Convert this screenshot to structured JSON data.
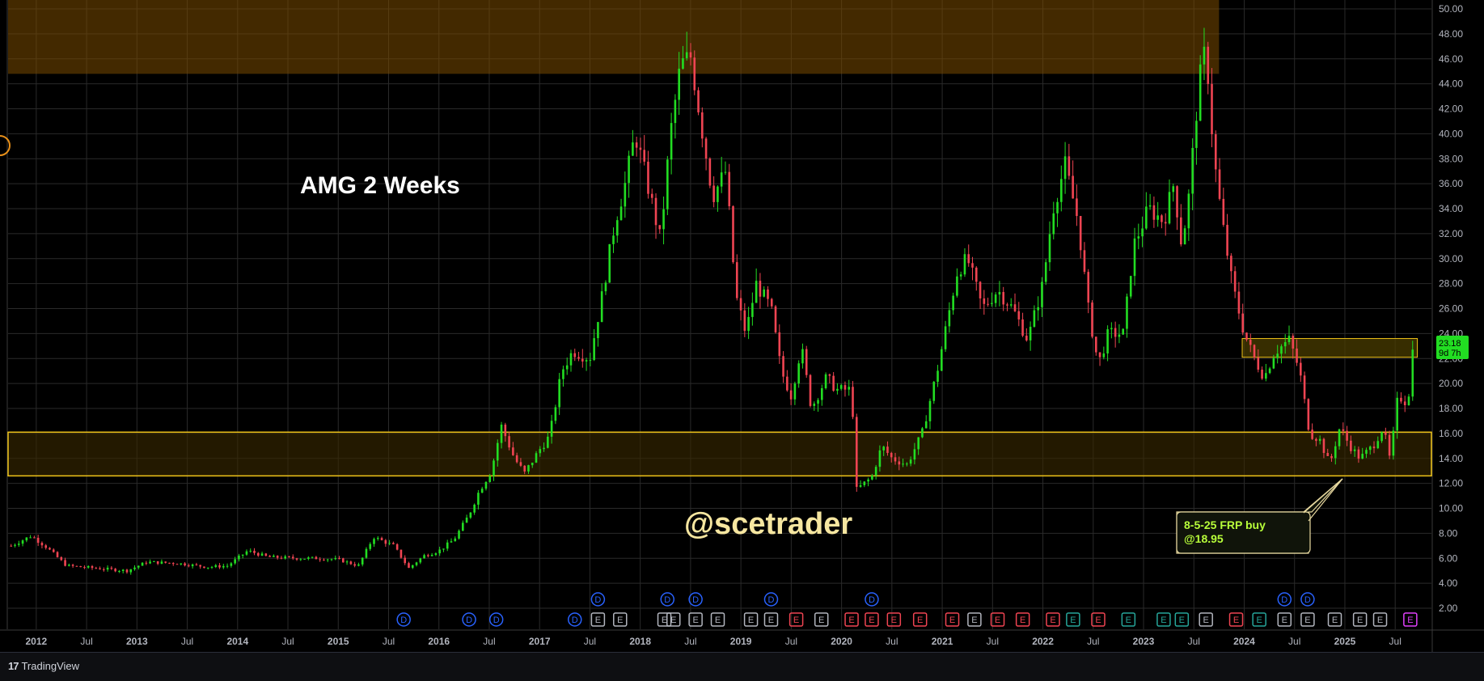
{
  "chart_data": {
    "type": "candlestick",
    "title": "AMG 2 Weeks",
    "watermark": "@scetrader",
    "y_axis": {
      "ticks": [
        "50.00",
        "48.00",
        "46.00",
        "44.00",
        "42.00",
        "40.00",
        "38.00",
        "36.00",
        "34.00",
        "32.00",
        "30.00",
        "28.00",
        "26.00",
        "24.00",
        "22.00",
        "20.00",
        "18.00",
        "16.00",
        "14.00",
        "12.00",
        "10.00",
        "8.00",
        "6.00",
        "4.00",
        "2.00"
      ],
      "ylim": [
        0,
        51
      ]
    },
    "x_axis": {
      "ticks": [
        {
          "label": "2012",
          "bold": true,
          "t": 2012.0
        },
        {
          "label": "Jul",
          "bold": false,
          "t": 2012.5
        },
        {
          "label": "2013",
          "bold": true,
          "t": 2013.0
        },
        {
          "label": "Jul",
          "bold": false,
          "t": 2013.5
        },
        {
          "label": "2014",
          "bold": true,
          "t": 2014.0
        },
        {
          "label": "Jul",
          "bold": false,
          "t": 2014.5
        },
        {
          "label": "2015",
          "bold": true,
          "t": 2015.0
        },
        {
          "label": "Jul",
          "bold": false,
          "t": 2015.5
        },
        {
          "label": "2016",
          "bold": true,
          "t": 2016.0
        },
        {
          "label": "Jul",
          "bold": false,
          "t": 2016.5
        },
        {
          "label": "2017",
          "bold": true,
          "t": 2017.0
        },
        {
          "label": "Jul",
          "bold": false,
          "t": 2017.5
        },
        {
          "label": "2018",
          "bold": true,
          "t": 2018.0
        },
        {
          "label": "Jul",
          "bold": false,
          "t": 2018.5
        },
        {
          "label": "2019",
          "bold": true,
          "t": 2019.0
        },
        {
          "label": "Jul",
          "bold": false,
          "t": 2019.5
        },
        {
          "label": "2020",
          "bold": true,
          "t": 2020.0
        },
        {
          "label": "Jul",
          "bold": false,
          "t": 2020.5
        },
        {
          "label": "2021",
          "bold": true,
          "t": 2021.0
        },
        {
          "label": "Jul",
          "bold": false,
          "t": 2021.5
        },
        {
          "label": "2022",
          "bold": true,
          "t": 2022.0
        },
        {
          "label": "Jul",
          "bold": false,
          "t": 2022.5
        },
        {
          "label": "2023",
          "bold": true,
          "t": 2023.0
        },
        {
          "label": "Jul",
          "bold": false,
          "t": 2023.5
        },
        {
          "label": "2024",
          "bold": true,
          "t": 2024.0
        },
        {
          "label": "Jul",
          "bold": false,
          "t": 2024.5
        },
        {
          "label": "2025",
          "bold": true,
          "t": 2025.0
        },
        {
          "label": "Jul",
          "bold": false,
          "t": 2025.5
        }
      ]
    },
    "price_path": [
      [
        2011.75,
        7.0
      ],
      [
        2011.95,
        7.8
      ],
      [
        2012.1,
        6.9
      ],
      [
        2012.3,
        5.4
      ],
      [
        2012.6,
        5.2
      ],
      [
        2012.9,
        5.0
      ],
      [
        2013.1,
        5.7
      ],
      [
        2013.4,
        5.6
      ],
      [
        2013.7,
        5.3
      ],
      [
        2013.9,
        5.4
      ],
      [
        2014.1,
        6.6
      ],
      [
        2014.3,
        6.1
      ],
      [
        2014.6,
        6.0
      ],
      [
        2014.8,
        6.0
      ],
      [
        2015.0,
        5.9
      ],
      [
        2015.2,
        5.4
      ],
      [
        2015.35,
        7.7
      ],
      [
        2015.55,
        7.0
      ],
      [
        2015.7,
        5.2
      ],
      [
        2015.85,
        6.2
      ],
      [
        2016.0,
        6.6
      ],
      [
        2016.15,
        7.5
      ],
      [
        2016.3,
        9.5
      ],
      [
        2016.4,
        11.4
      ],
      [
        2016.52,
        13.0
      ],
      [
        2016.62,
        16.6
      ],
      [
        2016.75,
        14.0
      ],
      [
        2016.85,
        12.8
      ],
      [
        2017.0,
        14.7
      ],
      [
        2017.1,
        15.8
      ],
      [
        2017.22,
        21.0
      ],
      [
        2017.33,
        22.6
      ],
      [
        2017.5,
        22.0
      ],
      [
        2017.62,
        27.0
      ],
      [
        2017.75,
        33.0
      ],
      [
        2017.85,
        36.0
      ],
      [
        2017.95,
        40.0
      ],
      [
        2018.1,
        35.0
      ],
      [
        2018.2,
        31.5
      ],
      [
        2018.3,
        40.0
      ],
      [
        2018.4,
        45.5
      ],
      [
        2018.5,
        46.2
      ],
      [
        2018.62,
        40.0
      ],
      [
        2018.72,
        35.0
      ],
      [
        2018.85,
        37.0
      ],
      [
        2018.95,
        27.0
      ],
      [
        2019.05,
        24.0
      ],
      [
        2019.15,
        28.0
      ],
      [
        2019.3,
        26.0
      ],
      [
        2019.4,
        21.0
      ],
      [
        2019.5,
        19.0
      ],
      [
        2019.6,
        23.0
      ],
      [
        2019.7,
        18.0
      ],
      [
        2019.85,
        20.5
      ],
      [
        2019.95,
        19.5
      ],
      [
        2020.1,
        19.5
      ],
      [
        2020.15,
        11.5
      ],
      [
        2020.3,
        12.5
      ],
      [
        2020.4,
        15.0
      ],
      [
        2020.5,
        14.0
      ],
      [
        2020.65,
        13.5
      ],
      [
        2020.8,
        16.0
      ],
      [
        2020.95,
        21.0
      ],
      [
        2021.05,
        25.0
      ],
      [
        2021.15,
        29.0
      ],
      [
        2021.25,
        30.0
      ],
      [
        2021.4,
        26.0
      ],
      [
        2021.55,
        27.5
      ],
      [
        2021.7,
        26.0
      ],
      [
        2021.85,
        23.5
      ],
      [
        2022.0,
        28.0
      ],
      [
        2022.1,
        34.0
      ],
      [
        2022.22,
        37.5
      ],
      [
        2022.35,
        33.0
      ],
      [
        2022.45,
        26.0
      ],
      [
        2022.55,
        21.5
      ],
      [
        2022.65,
        24.0
      ],
      [
        2022.8,
        24.0
      ],
      [
        2022.9,
        31.0
      ],
      [
        2023.05,
        34.0
      ],
      [
        2023.2,
        33.0
      ],
      [
        2023.3,
        36.0
      ],
      [
        2023.38,
        31.0
      ],
      [
        2023.45,
        35.0
      ],
      [
        2023.55,
        44.0
      ],
      [
        2023.62,
        47.0
      ],
      [
        2023.7,
        38.0
      ],
      [
        2023.78,
        33.0
      ],
      [
        2023.88,
        28.0
      ],
      [
        2024.0,
        24.0
      ],
      [
        2024.1,
        22.0
      ],
      [
        2024.2,
        20.5
      ],
      [
        2024.3,
        22.5
      ],
      [
        2024.45,
        23.5
      ],
      [
        2024.55,
        21.0
      ],
      [
        2024.65,
        16.0
      ],
      [
        2024.75,
        15.5
      ],
      [
        2024.85,
        13.5
      ],
      [
        2024.95,
        16.5
      ],
      [
        2025.05,
        15.0
      ],
      [
        2025.15,
        14.0
      ],
      [
        2025.28,
        15.0
      ],
      [
        2025.38,
        16.5
      ],
      [
        2025.45,
        13.8
      ],
      [
        2025.52,
        18.5
      ],
      [
        2025.58,
        19.0
      ],
      [
        2025.62,
        18.0
      ],
      [
        2025.68,
        23.18
      ]
    ],
    "resistance_zone": [
      44.8,
      51.0
    ],
    "support_zone": [
      12.6,
      16.1
    ],
    "current_zone": [
      22.1,
      23.6
    ],
    "last_price": {
      "value": "23.18",
      "countdown": "9d 7h",
      "bg": "#22dd22"
    },
    "annotation": {
      "line1": "8-5-25 FRP buy",
      "line2": "@18.95"
    },
    "events": [
      {
        "t": 2015.65,
        "row": "low",
        "letter": "D",
        "kind": "dividend"
      },
      {
        "t": 2016.3,
        "row": "low",
        "letter": "D",
        "kind": "dividend"
      },
      {
        "t": 2016.57,
        "row": "low",
        "letter": "D",
        "kind": "dividend"
      },
      {
        "t": 2017.35,
        "row": "low",
        "letter": "D",
        "kind": "dividend"
      },
      {
        "t": 2017.58,
        "row": "high",
        "letter": "D",
        "kind": "dividend"
      },
      {
        "t": 2018.27,
        "row": "high",
        "letter": "D",
        "kind": "dividend"
      },
      {
        "t": 2018.55,
        "row": "high",
        "letter": "D",
        "kind": "dividend"
      },
      {
        "t": 2019.3,
        "row": "high",
        "letter": "D",
        "kind": "dividend"
      },
      {
        "t": 2020.3,
        "row": "high",
        "letter": "D",
        "kind": "dividend"
      },
      {
        "t": 2024.4,
        "row": "high",
        "letter": "D",
        "kind": "dividend"
      },
      {
        "t": 2024.63,
        "row": "high",
        "letter": "D",
        "kind": "dividend"
      },
      {
        "t": 2017.58,
        "row": "low",
        "letter": "E",
        "kind": "neutral"
      },
      {
        "t": 2017.8,
        "row": "low",
        "letter": "E",
        "kind": "neutral"
      },
      {
        "t": 2018.24,
        "row": "low",
        "letter": "E",
        "kind": "neutral"
      },
      {
        "t": 2018.33,
        "row": "low",
        "letter": "E",
        "kind": "neutral"
      },
      {
        "t": 2018.55,
        "row": "low",
        "letter": "E",
        "kind": "neutral"
      },
      {
        "t": 2018.77,
        "row": "low",
        "letter": "E",
        "kind": "neutral"
      },
      {
        "t": 2019.1,
        "row": "low",
        "letter": "E",
        "kind": "neutral"
      },
      {
        "t": 2019.3,
        "row": "low",
        "letter": "E",
        "kind": "neutral"
      },
      {
        "t": 2019.55,
        "row": "low",
        "letter": "E",
        "kind": "miss"
      },
      {
        "t": 2019.8,
        "row": "low",
        "letter": "E",
        "kind": "neutral"
      },
      {
        "t": 2020.1,
        "row": "low",
        "letter": "E",
        "kind": "miss"
      },
      {
        "t": 2020.3,
        "row": "low",
        "letter": "E",
        "kind": "miss"
      },
      {
        "t": 2020.52,
        "row": "low",
        "letter": "E",
        "kind": "miss"
      },
      {
        "t": 2020.78,
        "row": "low",
        "letter": "E",
        "kind": "miss"
      },
      {
        "t": 2021.1,
        "row": "low",
        "letter": "E",
        "kind": "miss"
      },
      {
        "t": 2021.32,
        "row": "low",
        "letter": "E",
        "kind": "neutral"
      },
      {
        "t": 2021.55,
        "row": "low",
        "letter": "E",
        "kind": "miss"
      },
      {
        "t": 2021.8,
        "row": "low",
        "letter": "E",
        "kind": "miss"
      },
      {
        "t": 2022.1,
        "row": "low",
        "letter": "E",
        "kind": "miss"
      },
      {
        "t": 2022.3,
        "row": "low",
        "letter": "E",
        "kind": "beat"
      },
      {
        "t": 2022.55,
        "row": "low",
        "letter": "E",
        "kind": "miss"
      },
      {
        "t": 2022.85,
        "row": "low",
        "letter": "E",
        "kind": "beat"
      },
      {
        "t": 2023.2,
        "row": "low",
        "letter": "E",
        "kind": "beat"
      },
      {
        "t": 2023.38,
        "row": "low",
        "letter": "E",
        "kind": "beat"
      },
      {
        "t": 2023.62,
        "row": "low",
        "letter": "E",
        "kind": "neutral"
      },
      {
        "t": 2023.92,
        "row": "low",
        "letter": "E",
        "kind": "miss"
      },
      {
        "t": 2024.15,
        "row": "low",
        "letter": "E",
        "kind": "beat"
      },
      {
        "t": 2024.4,
        "row": "low",
        "letter": "E",
        "kind": "neutral"
      },
      {
        "t": 2024.63,
        "row": "low",
        "letter": "E",
        "kind": "neutral"
      },
      {
        "t": 2024.9,
        "row": "low",
        "letter": "E",
        "kind": "neutral"
      },
      {
        "t": 2025.15,
        "row": "low",
        "letter": "E",
        "kind": "neutral"
      },
      {
        "t": 2025.35,
        "row": "low",
        "letter": "E",
        "kind": "neutral"
      },
      {
        "t": 2025.65,
        "row": "low",
        "letter": "E",
        "kind": "upcoming"
      }
    ],
    "colors": {
      "up": "#22dd22",
      "down": "#ef4452",
      "zone": "#f0c419",
      "resistance_fill": "#7a4a00",
      "grid": "#2a2a2a",
      "axis_text": "#b2b5be",
      "annotation": "#b8ff3a",
      "watermark": "#f6e6a0"
    }
  },
  "footer": {
    "brand": "TradingView",
    "brand_mark": "17"
  }
}
